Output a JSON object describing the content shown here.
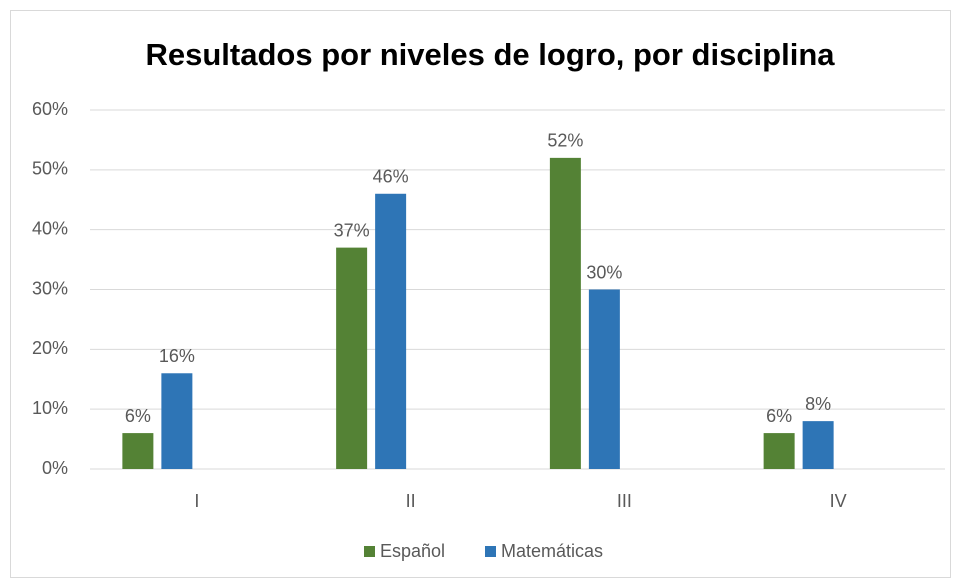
{
  "chart_data": {
    "type": "bar",
    "title": "Resultados por niveles de logro, por disciplina",
    "categories": [
      "I",
      "II",
      "III",
      "IV"
    ],
    "series": [
      {
        "name": "Español",
        "color": "#548235",
        "values": [
          6,
          37,
          52,
          6
        ],
        "value_labels": [
          "6%",
          "37%",
          "52%",
          "6%"
        ]
      },
      {
        "name": "Matemáticas",
        "color": "#2e75b6",
        "values": [
          16,
          46,
          30,
          8
        ],
        "value_labels": [
          "16%",
          "46%",
          "30%",
          "8%"
        ]
      }
    ],
    "ylim": [
      0,
      60
    ],
    "yticks": [
      {
        "value": 0,
        "label": "0%"
      },
      {
        "value": 10,
        "label": "10%"
      },
      {
        "value": 20,
        "label": "20%"
      },
      {
        "value": 30,
        "label": "30%"
      },
      {
        "value": 40,
        "label": "40%"
      },
      {
        "value": 50,
        "label": "50%"
      },
      {
        "value": 60,
        "label": "60%"
      }
    ],
    "grid": true,
    "legend": "bottom"
  }
}
